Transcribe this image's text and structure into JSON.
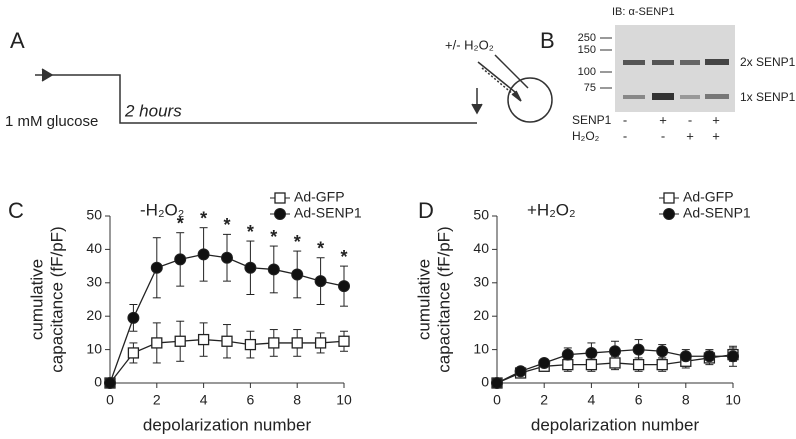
{
  "panels": {
    "a": "A",
    "b": "B",
    "c": "C",
    "d": "D"
  },
  "protocol": {
    "start": "1 mM glucose",
    "duration": "2 hours",
    "treatment": "+/- H₂O₂"
  },
  "blot": {
    "title": "IB: α-SENP1",
    "markers": [
      250,
      150,
      100,
      75
    ],
    "bands": [
      "2x SENP1",
      "1x SENP1"
    ],
    "rows": [
      {
        "label": "SENP1",
        "signs": [
          "-",
          "+",
          "-",
          "+"
        ]
      },
      {
        "label": "H₂O₂",
        "signs": [
          "-",
          "-",
          "+",
          "+"
        ]
      }
    ]
  },
  "chart_data": [
    {
      "type": "line",
      "title": "-H₂O₂",
      "xlabel": "depolarization number",
      "ylabel": [
        "cumulative",
        "capacitance (fF/pF)"
      ],
      "x": [
        0,
        1,
        2,
        3,
        4,
        5,
        6,
        7,
        8,
        9,
        10
      ],
      "xlim": [
        0,
        10
      ],
      "xticks": [
        0,
        2,
        4,
        6,
        8,
        10
      ],
      "ylim": [
        0,
        50
      ],
      "yticks": [
        0,
        10,
        20,
        30,
        40,
        50
      ],
      "legend": "upper right",
      "series": [
        {
          "name": "Ad-GFP",
          "color": "#222222",
          "marker": "square",
          "fill": "#ffffff",
          "values": [
            0,
            9,
            12,
            12.5,
            13,
            12.5,
            11.5,
            12,
            12,
            12,
            12.5
          ],
          "errors": [
            0,
            3,
            6,
            6,
            5,
            5,
            4,
            4,
            4,
            3,
            3
          ]
        },
        {
          "name": "Ad-SENP1",
          "color": "#222222",
          "marker": "circle",
          "fill": "#111111",
          "values": [
            0,
            19.5,
            34.5,
            37,
            38.5,
            37.5,
            34.5,
            34,
            32.5,
            30.5,
            29
          ],
          "errors": [
            0,
            4,
            9,
            8,
            8,
            7,
            8,
            7,
            7,
            7,
            6
          ]
        }
      ],
      "annotations": [
        {
          "x": 3,
          "text": "*"
        },
        {
          "x": 4,
          "text": "*"
        },
        {
          "x": 5,
          "text": "*"
        },
        {
          "x": 6,
          "text": "*"
        },
        {
          "x": 7,
          "text": "*"
        },
        {
          "x": 8,
          "text": "*"
        },
        {
          "x": 9,
          "text": "*"
        },
        {
          "x": 10,
          "text": "*"
        }
      ]
    },
    {
      "type": "line",
      "title": "+H₂O₂",
      "xlabel": "depolarization number",
      "ylabel": [
        "cumulative",
        "capacitance (fF/pF)"
      ],
      "x": [
        0,
        1,
        2,
        3,
        4,
        5,
        6,
        7,
        8,
        9,
        10
      ],
      "xlim": [
        0,
        10
      ],
      "xticks": [
        0,
        2,
        4,
        6,
        8,
        10
      ],
      "ylim": [
        0,
        50
      ],
      "yticks": [
        0,
        10,
        20,
        30,
        40,
        50
      ],
      "legend": "upper right",
      "series": [
        {
          "name": "Ad-GFP",
          "color": "#222222",
          "marker": "square",
          "fill": "#ffffff",
          "values": [
            0,
            3,
            5,
            5.5,
            5.5,
            6,
            5.5,
            5.5,
            6.5,
            7.5,
            8.5
          ],
          "errors": [
            0,
            1,
            1,
            2,
            2,
            2,
            2,
            2,
            2,
            2,
            2
          ]
        },
        {
          "name": "Ad-SENP1",
          "color": "#222222",
          "marker": "circle",
          "fill": "#111111",
          "values": [
            0,
            3.5,
            6,
            8.5,
            9,
            9.5,
            10,
            9.5,
            8,
            8,
            8
          ],
          "errors": [
            0,
            1,
            1,
            2,
            3,
            3,
            3,
            2,
            2,
            2,
            3
          ]
        }
      ]
    }
  ]
}
